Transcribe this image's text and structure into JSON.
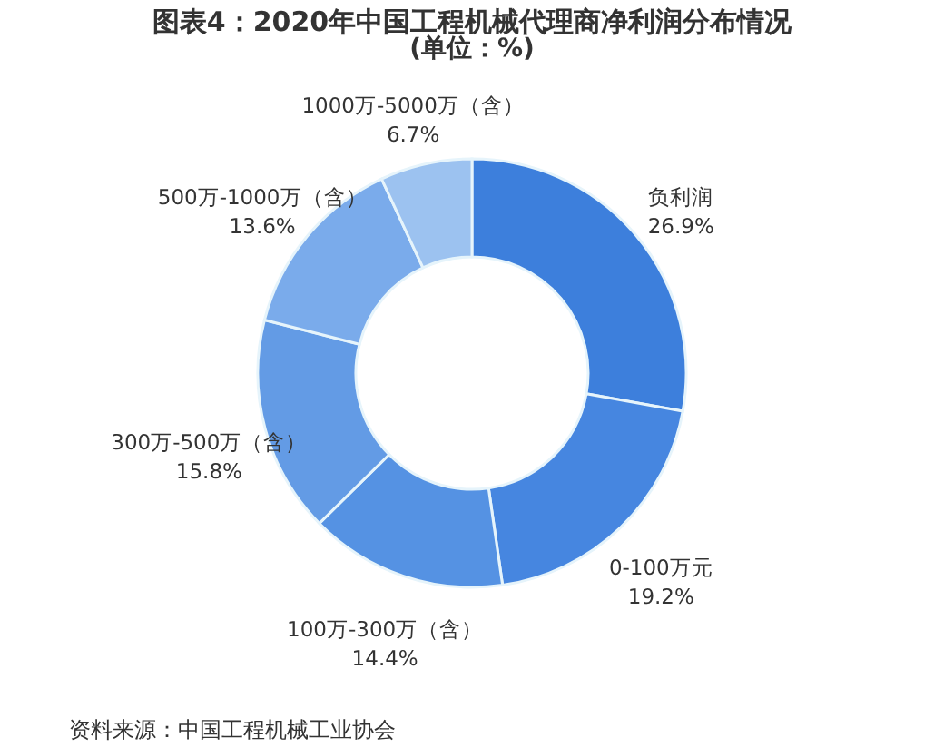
{
  "chart_data": {
    "type": "donut",
    "title": "图表4：2020年中国工程机械代理商净利润分布情况",
    "subtitle": "(单位：%)",
    "categories": [
      "负利润",
      "0-100万元",
      "100万-300万（含）",
      "300万-500万（含）",
      "500万-1000万（含）",
      "1000万-5000万（含）"
    ],
    "values": [
      26.9,
      19.2,
      14.4,
      15.8,
      13.6,
      6.7
    ],
    "value_labels": [
      "26.9%",
      "19.2%",
      "14.4%",
      "15.8%",
      "13.6%",
      "6.7%"
    ],
    "colors": [
      "#3d7fdc",
      "#4686e0",
      "#5592e3",
      "#639be5",
      "#7aabeb",
      "#9cc2f0"
    ],
    "legend": false,
    "annotations": [
      "资料来源：中国工程机械工业协会"
    ]
  }
}
